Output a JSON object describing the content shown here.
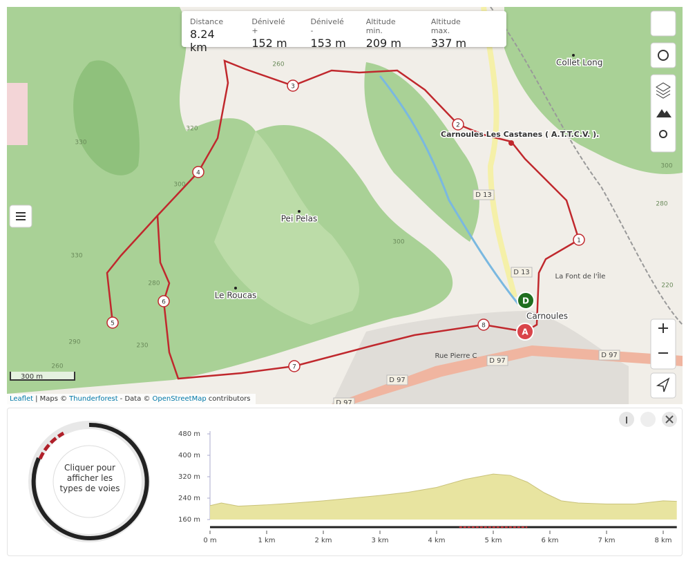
{
  "stats": [
    {
      "label": "Distance",
      "value": "8.24 km"
    },
    {
      "label": "Dénivelé +",
      "value": "152 m"
    },
    {
      "label": "Dénivelé -",
      "value": "153 m"
    },
    {
      "label": "Altitude min.",
      "value": "209 m"
    },
    {
      "label": "Altitude max.",
      "value": "337 m"
    }
  ],
  "map": {
    "places": [
      "Collet Long",
      "Carnoules  Les Castanes ( A.T.T.C.V. ).",
      "Pei Pelas",
      "Le Roucas",
      "Carnoules"
    ],
    "roads": [
      "D 13",
      "D 13",
      "D 97",
      "D 97",
      "D 97",
      "D 97",
      "Rue Pierre C",
      "La Font de l'Île"
    ],
    "contours": [
      "260",
      "320",
      "330",
      "300",
      "300",
      "330",
      "280",
      "290",
      "230",
      "260",
      "300",
      "280",
      "220"
    ],
    "waypoints": [
      "1",
      "2",
      "3",
      "4",
      "5",
      "6",
      "7",
      "8"
    ],
    "start": "D",
    "end": "A",
    "scale": "300 m",
    "attribution": [
      "Leaflet",
      "| Maps ©",
      "Thunderforest",
      "- Data ©",
      "OpenStreetMap",
      "contributors"
    ]
  },
  "road_types_button": "Cliquer pour afficher les types de voies",
  "profile": {
    "type": "area",
    "color": "#e8e4a0",
    "x": [
      0,
      0.2,
      0.5,
      1,
      1.5,
      2,
      2.5,
      3,
      3.5,
      4,
      4.5,
      5,
      5.3,
      5.6,
      5.9,
      6.2,
      6.5,
      7,
      7.5,
      8,
      8.24
    ],
    "values": [
      212,
      222,
      210,
      215,
      222,
      230,
      240,
      250,
      262,
      280,
      310,
      330,
      325,
      300,
      260,
      230,
      222,
      218,
      218,
      230,
      228
    ],
    "xlim": [
      0,
      8.24
    ],
    "ylim": [
      160,
      480
    ],
    "yticks": [
      {
        "value": 160,
        "label": "160 m"
      },
      {
        "value": 240,
        "label": "240 m"
      },
      {
        "value": 320,
        "label": "320 m"
      },
      {
        "value": 400,
        "label": "400 m"
      },
      {
        "value": 480,
        "label": "480 m"
      }
    ],
    "xticks": [
      {
        "value": 0,
        "label": "0 m"
      },
      {
        "value": 1,
        "label": "1 km"
      },
      {
        "value": 2,
        "label": "2 km"
      },
      {
        "value": 3,
        "label": "3 km"
      },
      {
        "value": 4,
        "label": "4 km"
      },
      {
        "value": 5,
        "label": "5 km"
      },
      {
        "value": 6,
        "label": "6 km"
      },
      {
        "value": 7,
        "label": "7 km"
      },
      {
        "value": 8,
        "label": "8 km"
      }
    ]
  }
}
